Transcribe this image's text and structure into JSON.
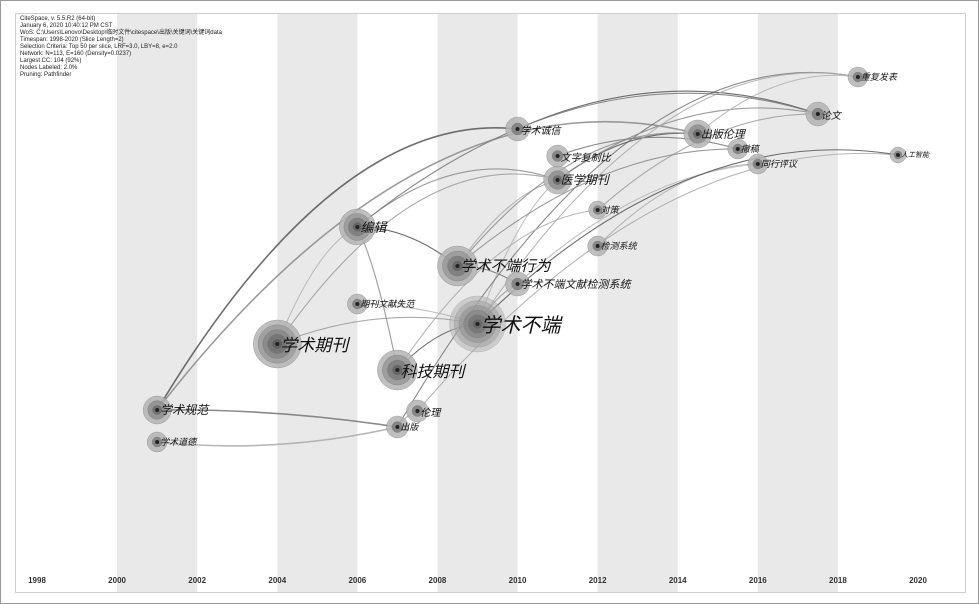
{
  "meta": [
    "CiteSpace, v. 5.5.R2 (64-bit)",
    "January 6, 2020 10:40:12 PM CST",
    "WoS: C:\\Users\\Lenovo\\Desktop\\临时文件\\citespace\\出版\\关键词\\关键词data",
    "Timespan: 1998-2020 (Slice Length=2)",
    "Selection Criteria: Top 50 per slice, LRF=3.0, LBY=8, e=2.0",
    "Network: N=113, E=160 (Density=0.0237)",
    "Largest CC: 104 (92%)",
    "Nodes Labeled: 2.0%",
    "Pruning: Pathfinder"
  ],
  "years": [
    "1998",
    "2000",
    "2002",
    "2004",
    "2006",
    "2008",
    "2010",
    "2012",
    "2014",
    "2016",
    "2018",
    "2020"
  ],
  "nodes": [
    {
      "id": "academic-misconduct",
      "label": "学术不端",
      "size": 28,
      "year": 2009
    },
    {
      "id": "academic-journal",
      "label": "学术期刊",
      "size": 24,
      "year": 2004
    },
    {
      "id": "scitech-journal",
      "label": "科技期刊",
      "size": 20,
      "year": 2007
    },
    {
      "id": "misconduct-behavior",
      "label": "学术不端行为",
      "size": 20,
      "year": 2008.5
    },
    {
      "id": "editing",
      "label": "编辑",
      "size": 18,
      "year": 2006
    },
    {
      "id": "academic-norms",
      "label": "学术规范",
      "size": 14,
      "year": 2001
    },
    {
      "id": "academic-ethics",
      "label": "学术道德",
      "size": 10,
      "year": 2001
    },
    {
      "id": "detection-system",
      "label": "学术不端文献检测系统",
      "size": 12,
      "year": 2010
    },
    {
      "id": "ethics",
      "label": "伦理",
      "size": 11,
      "year": 2007.5
    },
    {
      "id": "publishing",
      "label": "出版",
      "size": 11,
      "year": 2007
    },
    {
      "id": "publishing-ethics",
      "label": "出版伦理",
      "size": 14,
      "year": 2014.5
    },
    {
      "id": "chinese-journal",
      "label": "医学期刊",
      "size": 14,
      "year": 2011
    },
    {
      "id": "text-copy",
      "label": "文字复制比",
      "size": 11,
      "year": 2011
    },
    {
      "id": "academic-integrity",
      "label": "学术诚信",
      "size": 12,
      "year": 2010
    },
    {
      "id": "lit-misconduct",
      "label": "期刊文献失范",
      "size": 10,
      "year": 2006
    },
    {
      "id": "detect-system",
      "label": "检测系统",
      "size": 10,
      "year": 2012
    },
    {
      "id": "countermeasure",
      "label": "对策",
      "size": 9,
      "year": 2012
    },
    {
      "id": "paper",
      "label": "论文",
      "size": 12,
      "year": 2017.5
    },
    {
      "id": "peer-review",
      "label": "同行评议",
      "size": 10,
      "year": 2016
    },
    {
      "id": "retraction",
      "label": "撤稿",
      "size": 10,
      "year": 2015.5
    },
    {
      "id": "repub",
      "label": "重复发表",
      "size": 10,
      "year": 2018.5
    },
    {
      "id": "ai",
      "label": "人工智能",
      "size": 8,
      "year": 2019.5
    }
  ]
}
